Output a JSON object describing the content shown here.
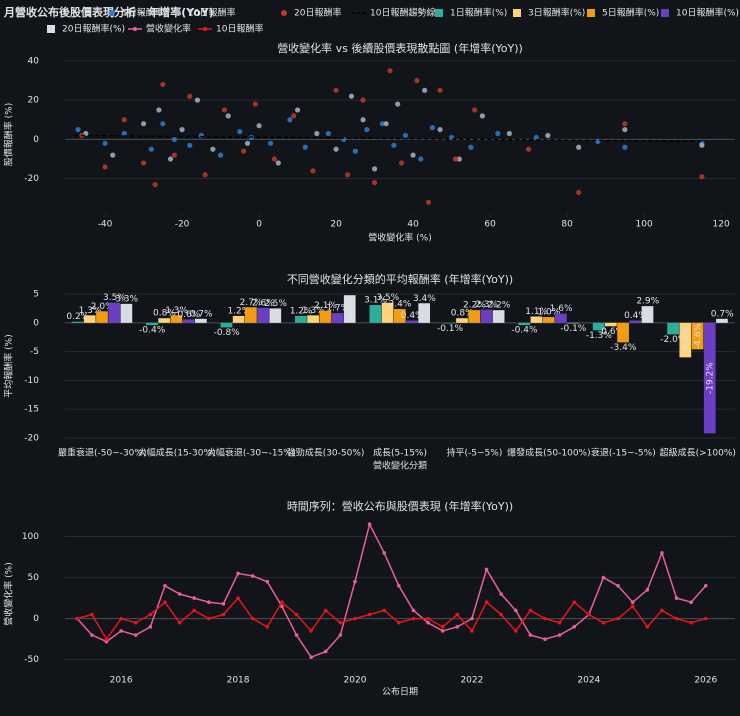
{
  "title": "月營收公布後股價表現分析 - 年增率(YoY)",
  "chart_data": [
    {
      "type": "scatter",
      "title": "營收變化率 vs 後續股價表現散點圖 (年增率(YoY))",
      "xlabel": "營收變化率 (%)",
      "ylabel": "股價報酬率 (%)",
      "xlim": [
        -50.4,
        123.6
      ],
      "ylim": [
        -38,
        43
      ],
      "xticks": [
        -40,
        -20,
        0,
        20,
        40,
        60,
        80,
        100,
        120
      ],
      "yticks": [
        -20,
        0,
        20,
        40
      ],
      "grid": true,
      "series": [
        {
          "name": "1日報酬率",
          "color": "#2a7fd4",
          "mode": "markers",
          "x": [
            -47,
            -40,
            -35,
            -28,
            -25,
            -22,
            -18,
            -15,
            -10,
            -5,
            -2,
            3,
            8,
            12,
            18,
            22,
            25,
            28,
            32,
            35,
            38,
            42,
            45,
            50,
            55,
            62,
            72,
            88,
            95,
            115
          ],
          "values": [
            5,
            -2,
            3,
            -5,
            8,
            0,
            -3,
            2,
            -8,
            4,
            1,
            -2,
            10,
            -4,
            3,
            0,
            -6,
            5,
            8,
            -3,
            2,
            -10,
            6,
            1,
            -4,
            3,
            1,
            -1,
            -4,
            -2
          ]
        },
        {
          "name": "10日報酬率",
          "color": "#a6b4c8",
          "mode": "markers",
          "x": [
            -45,
            -38,
            -30,
            -26,
            -23,
            -20,
            -16,
            -12,
            -8,
            -3,
            0,
            5,
            10,
            15,
            20,
            24,
            27,
            30,
            33,
            36,
            40,
            43,
            47,
            52,
            58,
            65,
            75,
            83,
            95,
            115
          ],
          "values": [
            3,
            -8,
            8,
            15,
            -10,
            5,
            20,
            -5,
            12,
            -2,
            7,
            -12,
            15,
            3,
            -5,
            22,
            10,
            -15,
            8,
            18,
            -8,
            25,
            5,
            -10,
            12,
            3,
            2,
            -4,
            5,
            -3
          ]
        },
        {
          "name": "20日報酬率",
          "color": "#c0392b",
          "mode": "markers",
          "x": [
            -46,
            -40,
            -35,
            -30,
            -27,
            -25,
            -22,
            -18,
            -14,
            -9,
            -4,
            -1,
            4,
            9,
            14,
            20,
            23,
            27,
            30,
            34,
            37,
            41,
            44,
            47,
            51,
            56,
            70,
            83,
            95,
            115
          ],
          "values": [
            2,
            -14,
            10,
            -12,
            -23,
            28,
            -8,
            22,
            -18,
            15,
            -6,
            18,
            -10,
            12,
            -16,
            25,
            -18,
            20,
            -22,
            35,
            -12,
            30,
            -32,
            25,
            -10,
            15,
            -5,
            -27,
            8,
            -19
          ]
        },
        {
          "name": "10日報酬趨勢線",
          "color": "#000000",
          "mode": "dash",
          "x": [
            -48,
            115
          ],
          "values": [
            2,
            -1
          ]
        }
      ]
    },
    {
      "type": "bar",
      "title": "不同營收變化分類的平均報酬率 (年增率(YoY))",
      "xlabel": "營收變化分類",
      "ylabel": "平均報酬率 (%)",
      "ylim": [
        -21.4,
        6.4
      ],
      "yticks": [
        5,
        0,
        -5,
        -10,
        -15,
        -20
      ],
      "grid": true,
      "categories": [
        "嚴重衰退(-50~-30%)",
        "大幅成長(15-30%)",
        "大幅衰退(-30~-15%)",
        "強勁成長(30-50%)",
        "成長(5-15%)",
        "持平(-5~5%)",
        "爆發成長(50-100%)",
        "衰退(-15~-5%)",
        "超級成長(>100%)"
      ],
      "series": [
        {
          "name": "1日報酬率(%)",
          "color": "#2ab09a",
          "values": [
            0.2,
            -0.4,
            -0.8,
            1.2,
            3.1,
            -0.1,
            -0.4,
            -1.3,
            -2.0
          ],
          "value_labels": [
            "0.2%",
            "-0.4%",
            "-0.8%",
            "1.2%",
            "3.1%",
            "-0.1%",
            "-0.4%",
            "-1.3%",
            "-2.0%"
          ]
        },
        {
          "name": "3日報酬率(%)",
          "color": "#ffd37a",
          "values": [
            1.3,
            0.8,
            1.2,
            1.3,
            3.5,
            0.8,
            1.1,
            -0.6,
            -6.0
          ],
          "value_labels": [
            "1.3%",
            "0.8%",
            "1.2%",
            "1.3%",
            "3.5%",
            "0.8%",
            "1.1%",
            "-0.6%",
            "-6.0%"
          ]
        },
        {
          "name": "5日報酬率(%)",
          "color": "#f39c12",
          "values": [
            2.0,
            1.3,
            2.7,
            2.1,
            2.4,
            2.2,
            1.0,
            -3.4,
            -4.6
          ],
          "value_labels": [
            "2.0%",
            "1.3%",
            "2.7%",
            "2.1%",
            "2.4%",
            "2.2%",
            "1.0%",
            "-3.4%",
            "-4.6%"
          ]
        },
        {
          "name": "10日報酬率(%)",
          "color": "#6a3fc4",
          "values": [
            3.5,
            0.6,
            2.6,
            1.7,
            0.4,
            2.3,
            1.6,
            0.4,
            -19.2
          ],
          "value_labels": [
            "3.5%",
            "0.6%",
            "2.6%",
            "1.7%",
            "0.4%",
            "2.3%",
            "1.6%",
            "0.4%",
            "-19.2%"
          ]
        },
        {
          "name": "20日報酬率(%)",
          "color": "#d9dde3",
          "values": [
            3.3,
            0.7,
            2.5,
            4.8,
            3.4,
            2.2,
            -0.1,
            2.9,
            0.7
          ],
          "value_labels": [
            "3.3%",
            "0.7%",
            "2.5%",
            "4.8%",
            "3.4%",
            "2.2%",
            "-0.1%",
            "2.9%",
            "0.7%"
          ]
        }
      ]
    },
    {
      "type": "line",
      "title": "時間序列：營收公布與股價表現 (年增率(YoY))",
      "xlabel": "公布日期",
      "ylabel": "營收變化率 (%)",
      "xlim": [
        2015.04,
        2026.5
      ],
      "ylim": [
        -65,
        125
      ],
      "xticks": [
        2016,
        2018,
        2020,
        2022,
        2024,
        2026
      ],
      "yticks": [
        -50,
        0,
        50,
        100
      ],
      "grid": true,
      "x": [
        2015.25,
        2015.5,
        2015.75,
        2016.0,
        2016.25,
        2016.5,
        2016.75,
        2017.0,
        2017.25,
        2017.5,
        2017.75,
        2018.0,
        2018.25,
        2018.5,
        2018.75,
        2019.0,
        2019.25,
        2019.5,
        2019.75,
        2020.0,
        2020.25,
        2020.5,
        2020.75,
        2021.0,
        2021.25,
        2021.5,
        2021.75,
        2022.0,
        2022.25,
        2022.5,
        2022.75,
        2023.0,
        2023.25,
        2023.5,
        2023.75,
        2024.0,
        2024.25,
        2024.5,
        2024.75,
        2025.0,
        2025.25,
        2025.5,
        2025.75,
        2026.0
      ],
      "series": [
        {
          "name": "營收變化率",
          "color": "#e8609a",
          "values": [
            0,
            -20,
            -28,
            -15,
            -20,
            -10,
            40,
            30,
            25,
            20,
            18,
            55,
            52,
            45,
            15,
            -20,
            -47,
            -40,
            -20,
            45,
            115,
            80,
            40,
            10,
            -5,
            -15,
            -10,
            0,
            60,
            30,
            10,
            -20,
            -25,
            -20,
            -10,
            5,
            50,
            40,
            20,
            35,
            80,
            25,
            20,
            40
          ]
        },
        {
          "name": "10日報酬率",
          "color": "#e8141e",
          "values": [
            0,
            5,
            -25,
            0,
            -5,
            5,
            20,
            -5,
            10,
            0,
            5,
            25,
            0,
            -10,
            20,
            5,
            -15,
            10,
            -5,
            0,
            5,
            10,
            -5,
            0,
            0,
            -10,
            5,
            -15,
            20,
            5,
            -15,
            10,
            0,
            -5,
            20,
            5,
            -5,
            0,
            15,
            -10,
            10,
            0,
            -5,
            0
          ]
        }
      ]
    }
  ]
}
